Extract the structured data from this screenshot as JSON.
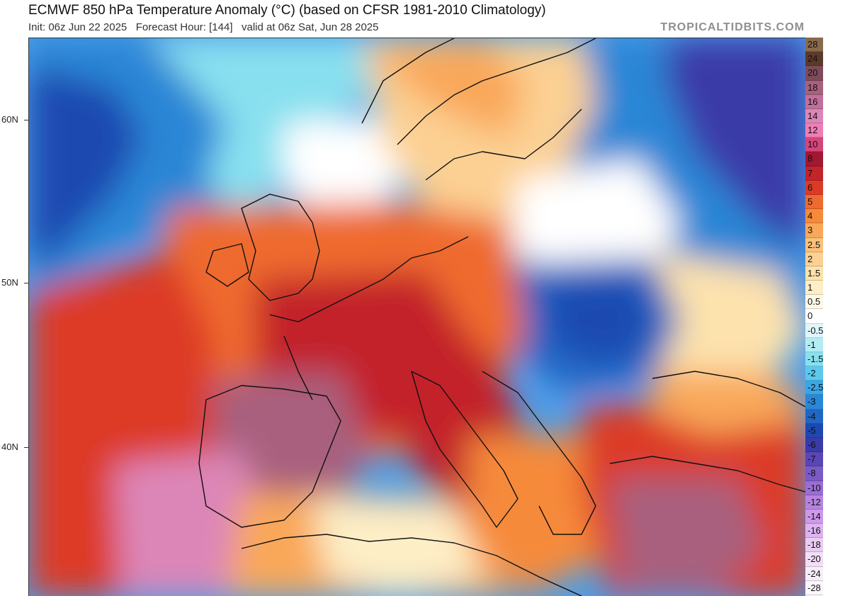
{
  "header": {
    "title": "ECMWF 850 hPa Temperature Anomaly (°C) (based on CFSR 1981-2010 Climatology)",
    "subtitle": "Init: 06z Jun 22 2025   Forecast Hour: [144]   valid at 06z Sat, Jun 28 2025",
    "brand": "TROPICALTIDBITS.COM"
  },
  "axes": {
    "latitude_labels": [
      {
        "text": "60N",
        "value": 60
      },
      {
        "text": "50N",
        "value": 50
      },
      {
        "text": "40N",
        "value": 40
      }
    ]
  },
  "colorbar": {
    "levels": [
      {
        "label": "28",
        "color": "#8a6a4c"
      },
      {
        "label": "24",
        "color": "#5a3a2a"
      },
      {
        "label": "20",
        "color": "#7e4b5a"
      },
      {
        "label": "18",
        "color": "#a8607e"
      },
      {
        "label": "16",
        "color": "#c0709a"
      },
      {
        "label": "14",
        "color": "#dc86b8"
      },
      {
        "label": "12",
        "color": "#f07eb6"
      },
      {
        "label": "10",
        "color": "#d6457a"
      },
      {
        "label": "8",
        "color": "#a11832"
      },
      {
        "label": "7",
        "color": "#c3232a"
      },
      {
        "label": "6",
        "color": "#dd3a26"
      },
      {
        "label": "5",
        "color": "#ef6a2e"
      },
      {
        "label": "4",
        "color": "#f68a3a"
      },
      {
        "label": "3",
        "color": "#f9a85a"
      },
      {
        "label": "2.5",
        "color": "#fbc07a"
      },
      {
        "label": "2",
        "color": "#fcd093"
      },
      {
        "label": "1.5",
        "color": "#fde2ad"
      },
      {
        "label": "1",
        "color": "#fdeec6"
      },
      {
        "label": "0.5",
        "color": "#fef8e6"
      },
      {
        "label": "0",
        "color": "#ffffff"
      },
      {
        "label": "-0.5",
        "color": "#e0f6fa"
      },
      {
        "label": "-1",
        "color": "#b4ecf4"
      },
      {
        "label": "-1.5",
        "color": "#88e0ef"
      },
      {
        "label": "-2",
        "color": "#5cc8ec"
      },
      {
        "label": "-2.5",
        "color": "#3aa6e6"
      },
      {
        "label": "-3",
        "color": "#2a86d6"
      },
      {
        "label": "-4",
        "color": "#2066c4"
      },
      {
        "label": "-5",
        "color": "#1e48b0"
      },
      {
        "label": "-6",
        "color": "#3a3aa8"
      },
      {
        "label": "-7",
        "color": "#5a46b4"
      },
      {
        "label": "-8",
        "color": "#7a5ac4"
      },
      {
        "label": "-10",
        "color": "#9a6ed4"
      },
      {
        "label": "-12",
        "color": "#b684e0"
      },
      {
        "label": "-14",
        "color": "#cc9ae8"
      },
      {
        "label": "-16",
        "color": "#dcb4ee"
      },
      {
        "label": "-18",
        "color": "#e8ccf2"
      },
      {
        "label": "-20",
        "color": "#f2def6"
      },
      {
        "label": "-24",
        "color": "#f8eefa"
      },
      {
        "label": "-28",
        "color": "#fcf6fd"
      }
    ]
  },
  "map": {
    "background_color": "#4c9ee8",
    "coastline_color": "#111111",
    "regions": [
      {
        "name": "atlantic-cold-west",
        "color": "#2a86d6"
      },
      {
        "name": "atlantic-deep-cold",
        "color": "#1e48b0"
      },
      {
        "name": "atlantic-light-cold",
        "color": "#88e0ef"
      },
      {
        "name": "north-sea-neutral",
        "color": "#ffffff"
      },
      {
        "name": "scandinavia-warm",
        "color": "#fcd093"
      },
      {
        "name": "norway-coast-warm",
        "color": "#f9a85a"
      },
      {
        "name": "russia-cold",
        "color": "#2a86d6"
      },
      {
        "name": "russia-deep-cold",
        "color": "#3a3aa8"
      },
      {
        "name": "poland-neutral",
        "color": "#ffffff"
      },
      {
        "name": "ukraine-warm",
        "color": "#fde2ad"
      },
      {
        "name": "balkan-cold",
        "color": "#2066c4"
      },
      {
        "name": "romania-deep-cold",
        "color": "#1e48b0"
      },
      {
        "name": "west-europe-warm",
        "color": "#ef6a2e"
      },
      {
        "name": "france-hot",
        "color": "#c3232a"
      },
      {
        "name": "iberia-very-hot",
        "color": "#a8607e"
      },
      {
        "name": "atlantic-hot-plume",
        "color": "#dd3a26"
      },
      {
        "name": "morocco-hot",
        "color": "#dc86b8"
      },
      {
        "name": "north-africa-warm",
        "color": "#f9a85a"
      },
      {
        "name": "sahara-neutral",
        "color": "#fdeec6"
      },
      {
        "name": "italy-hot",
        "color": "#c3232a"
      },
      {
        "name": "central-med-warm",
        "color": "#f68a3a"
      },
      {
        "name": "turkey-hot",
        "color": "#dd3a26"
      },
      {
        "name": "east-med-very-hot",
        "color": "#a8607e"
      },
      {
        "name": "black-sea-warm",
        "color": "#f9a85a"
      }
    ]
  }
}
